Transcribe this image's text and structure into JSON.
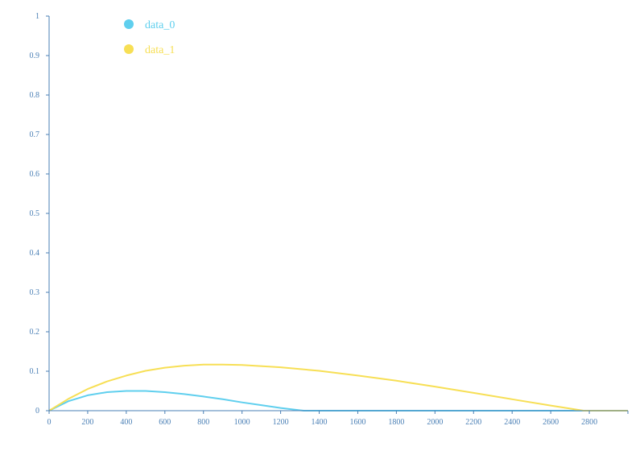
{
  "chart_data": {
    "type": "line",
    "title": "",
    "xlabel": "",
    "ylabel": "",
    "xlim": [
      0,
      3000
    ],
    "ylim": [
      0,
      1
    ],
    "x_ticks": [
      "0",
      "200",
      "400",
      "600",
      "800",
      "1000",
      "1200",
      "1400",
      "1600",
      "1800",
      "2000",
      "2200",
      "2400",
      "2600",
      "2800"
    ],
    "y_ticks": [
      "0",
      "0.1",
      "0.2",
      "0.3",
      "0.4",
      "0.5",
      "0.6",
      "0.7",
      "0.8",
      "0.9",
      "1"
    ],
    "grid": false,
    "legend": "top-left",
    "axis_color": "#4a7fb5",
    "series": [
      {
        "name": "data_0",
        "color": "#5fcfee",
        "x": [
          0,
          100,
          200,
          300,
          400,
          500,
          600,
          700,
          800,
          900,
          1000,
          1100,
          1200,
          1300,
          1320,
          1400,
          1600,
          1800,
          2000,
          2200,
          2400,
          2600,
          2800,
          3000
        ],
        "y": [
          0,
          0.024,
          0.039,
          0.047,
          0.05,
          0.05,
          0.047,
          0.042,
          0.036,
          0.029,
          0.021,
          0.014,
          0.007,
          0.001,
          0,
          0,
          0,
          0,
          0,
          0,
          0,
          0,
          0,
          0
        ]
      },
      {
        "name": "data_1",
        "color": "#f7df55",
        "x": [
          0,
          100,
          200,
          300,
          400,
          500,
          600,
          700,
          800,
          900,
          1000,
          1200,
          1400,
          1600,
          1800,
          2000,
          2200,
          2400,
          2600,
          2770,
          2800,
          3000
        ],
        "y": [
          0,
          0.03,
          0.055,
          0.074,
          0.089,
          0.101,
          0.109,
          0.114,
          0.117,
          0.117,
          0.116,
          0.11,
          0.101,
          0.089,
          0.076,
          0.061,
          0.045,
          0.029,
          0.013,
          0,
          0,
          0
        ]
      }
    ]
  }
}
